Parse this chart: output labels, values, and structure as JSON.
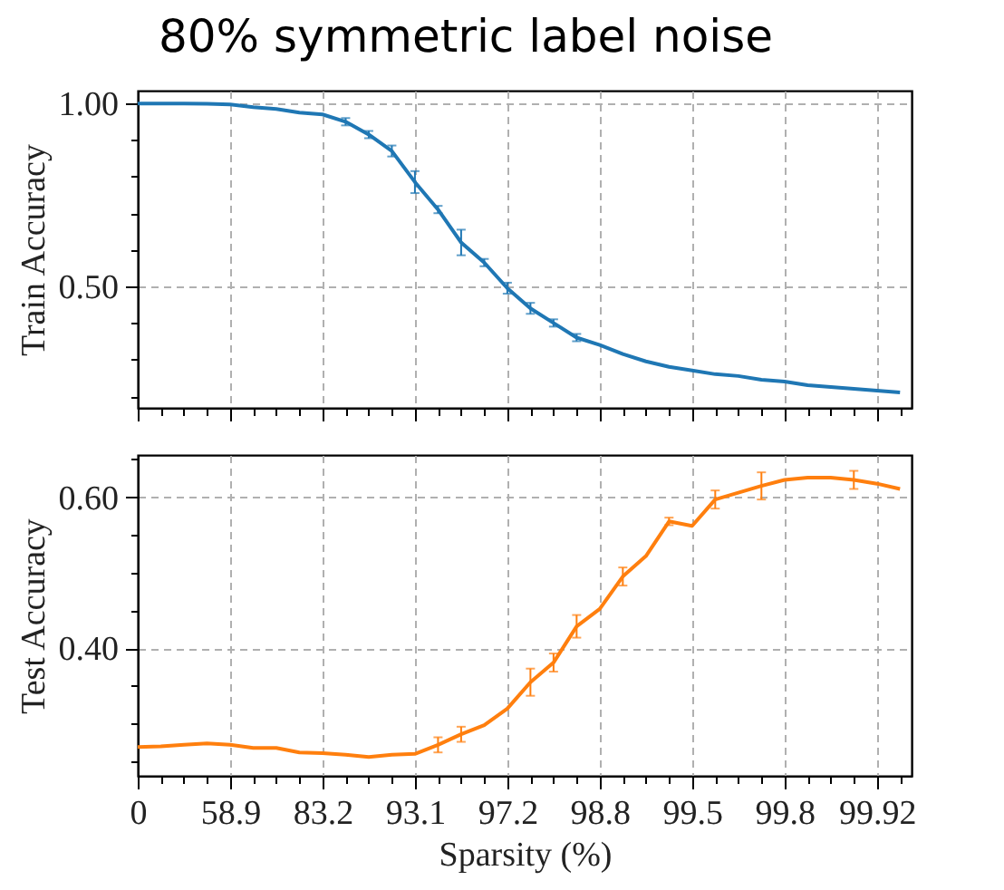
{
  "chart_data": [
    {
      "type": "line",
      "title": "80% symmetric label noise",
      "ylabel": "Train Accuracy",
      "categories": [
        "0",
        null,
        null,
        null,
        "58.9",
        null,
        null,
        null,
        "83.2",
        null,
        null,
        null,
        "93.1",
        null,
        null,
        null,
        "97.2",
        null,
        null,
        null,
        "98.8",
        null,
        null,
        null,
        "99.5",
        null,
        null,
        null,
        "99.8",
        null,
        null,
        null,
        "99.92",
        null
      ],
      "ylim": [
        0.168,
        1.035
      ],
      "yticks": [
        {
          "value": 0.2,
          "label": null
        },
        {
          "value": 0.3,
          "label": null
        },
        {
          "value": 0.4,
          "label": null
        },
        {
          "value": 0.5,
          "label": "0.50"
        },
        {
          "value": 0.6,
          "label": null
        },
        {
          "value": 0.7,
          "label": null
        },
        {
          "value": 0.8,
          "label": null
        },
        {
          "value": 0.9,
          "label": null
        },
        {
          "value": 1.0,
          "label": "1.00"
        }
      ],
      "grid": true,
      "tick_labels": "y",
      "marker": "none",
      "line_style": "solid",
      "series": [
        {
          "color": "#1f77b4",
          "values": [
            1.0,
            1.0,
            1.0,
            0.999,
            0.997,
            0.99,
            0.985,
            0.975,
            0.97,
            0.95,
            0.915,
            0.87,
            0.785,
            0.71,
            0.62,
            0.565,
            0.495,
            0.44,
            0.4,
            0.36,
            0.34,
            0.315,
            0.295,
            0.28,
            0.27,
            0.26,
            0.255,
            0.245,
            0.24,
            0.23,
            0.225,
            0.22,
            0.215,
            0.21
          ],
          "errors": [
            null,
            null,
            null,
            null,
            null,
            null,
            null,
            null,
            null,
            0.01,
            0.01,
            0.015,
            0.03,
            0.01,
            0.035,
            0.01,
            0.015,
            0.015,
            0.01,
            0.01,
            null,
            null,
            null,
            null,
            null,
            null,
            null,
            null,
            null,
            null,
            null,
            null,
            null,
            null
          ]
        }
      ]
    },
    {
      "type": "line",
      "xlabel": "Sparsity (%)",
      "ylabel": "Test Accuracy",
      "categories": [
        "0",
        null,
        null,
        null,
        "58.9",
        null,
        null,
        null,
        "83.2",
        null,
        null,
        null,
        "93.1",
        null,
        null,
        null,
        "97.2",
        null,
        null,
        null,
        "98.8",
        null,
        null,
        null,
        "99.5",
        null,
        null,
        null,
        "99.8",
        null,
        null,
        null,
        "99.92",
        null
      ],
      "ylim": [
        0.231,
        0.656
      ],
      "yticks": [
        {
          "value": 0.25,
          "label": null
        },
        {
          "value": 0.3,
          "label": null
        },
        {
          "value": 0.35,
          "label": null
        },
        {
          "value": 0.4,
          "label": "0.40"
        },
        {
          "value": 0.45,
          "label": null
        },
        {
          "value": 0.5,
          "label": null
        },
        {
          "value": 0.55,
          "label": null
        },
        {
          "value": 0.6,
          "label": "0.60"
        },
        {
          "value": 0.65,
          "label": null
        }
      ],
      "grid": true,
      "marker": "none",
      "line_style": "solid",
      "series": [
        {
          "color": "#ff7f0e",
          "values": [
            0.269,
            0.27,
            0.272,
            0.274,
            0.272,
            0.268,
            0.268,
            0.262,
            0.261,
            0.259,
            0.256,
            0.259,
            0.26,
            0.272,
            0.286,
            0.298,
            0.32,
            0.355,
            0.381,
            0.429,
            0.452,
            0.495,
            0.522,
            0.568,
            0.562,
            0.597,
            0.606,
            0.615,
            0.623,
            0.626,
            0.626,
            0.623,
            0.618,
            0.611
          ],
          "errors": [
            null,
            null,
            null,
            null,
            null,
            null,
            null,
            null,
            null,
            null,
            null,
            null,
            null,
            0.01,
            0.01,
            null,
            null,
            0.018,
            0.012,
            0.015,
            null,
            0.012,
            null,
            0.005,
            null,
            0.012,
            null,
            0.018,
            null,
            null,
            null,
            0.012,
            null,
            null
          ]
        }
      ]
    }
  ]
}
